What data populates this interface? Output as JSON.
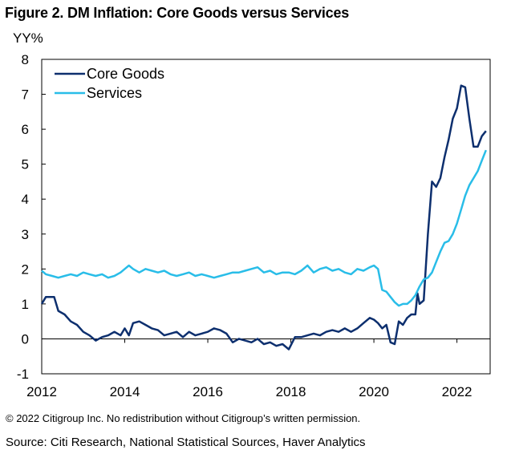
{
  "figure": {
    "title": "Figure 2. DM Inflation: Core Goods versus Services",
    "copyright": "© 2022 Citigroup Inc. No redistribution without Citigroup’s written permission.",
    "source": "Source: Citi Research, National Statistical Sources, Haver Analytics"
  },
  "chart_data": {
    "type": "line",
    "title": "Figure 2. DM Inflation: Core Goods versus Services",
    "xlabel": "",
    "ylabel": "YY%",
    "xlim": [
      2012,
      2022.8
    ],
    "ylim": [
      -1,
      8
    ],
    "xticks": [
      2012,
      2014,
      2016,
      2018,
      2020,
      2022
    ],
    "yticks": [
      -1,
      0,
      1,
      2,
      3,
      4,
      5,
      6,
      7,
      8
    ],
    "grid": false,
    "legend": "top-left",
    "series": [
      {
        "name": "Core Goods",
        "color": "#0d2f6e",
        "x": [
          2012.0,
          2012.1,
          2012.3,
          2012.4,
          2012.55,
          2012.7,
          2012.85,
          2013.0,
          2013.15,
          2013.3,
          2013.45,
          2013.6,
          2013.75,
          2013.9,
          2014.0,
          2014.1,
          2014.2,
          2014.35,
          2014.5,
          2014.65,
          2014.8,
          2014.95,
          2015.1,
          2015.25,
          2015.4,
          2015.55,
          2015.7,
          2015.85,
          2016.0,
          2016.15,
          2016.3,
          2016.45,
          2016.6,
          2016.75,
          2016.9,
          2017.05,
          2017.2,
          2017.35,
          2017.5,
          2017.65,
          2017.8,
          2017.95,
          2018.1,
          2018.25,
          2018.4,
          2018.55,
          2018.7,
          2018.85,
          2019.0,
          2019.15,
          2019.3,
          2019.45,
          2019.6,
          2019.75,
          2019.9,
          2020.0,
          2020.1,
          2020.2,
          2020.3,
          2020.4,
          2020.5,
          2020.6,
          2020.7,
          2020.8,
          2020.9,
          2021.0,
          2021.05,
          2021.1,
          2021.2,
          2021.3,
          2021.4,
          2021.5,
          2021.6,
          2021.7,
          2021.8,
          2021.9,
          2022.0,
          2022.1,
          2022.2,
          2022.3,
          2022.4,
          2022.5,
          2022.6,
          2022.7
        ],
        "values": [
          1.0,
          1.2,
          1.2,
          0.8,
          0.7,
          0.5,
          0.4,
          0.2,
          0.1,
          -0.05,
          0.05,
          0.1,
          0.2,
          0.1,
          0.3,
          0.1,
          0.45,
          0.5,
          0.4,
          0.3,
          0.25,
          0.1,
          0.15,
          0.2,
          0.05,
          0.2,
          0.1,
          0.15,
          0.2,
          0.3,
          0.25,
          0.15,
          -0.1,
          0.0,
          -0.05,
          -0.1,
          0.0,
          -0.15,
          -0.1,
          -0.2,
          -0.15,
          -0.3,
          0.05,
          0.05,
          0.1,
          0.15,
          0.1,
          0.2,
          0.25,
          0.2,
          0.3,
          0.2,
          0.3,
          0.45,
          0.6,
          0.55,
          0.45,
          0.3,
          0.4,
          -0.1,
          -0.15,
          0.5,
          0.4,
          0.6,
          0.7,
          0.7,
          1.3,
          1.0,
          1.1,
          3.0,
          4.5,
          4.35,
          4.6,
          5.2,
          5.7,
          6.3,
          6.6,
          7.25,
          7.2,
          6.3,
          5.5,
          5.5,
          5.8,
          5.95
        ]
      },
      {
        "name": "Services",
        "color": "#29bde8",
        "x": [
          2012.0,
          2012.1,
          2012.25,
          2012.4,
          2012.55,
          2012.7,
          2012.85,
          2013.0,
          2013.15,
          2013.3,
          2013.45,
          2013.6,
          2013.75,
          2013.9,
          2014.0,
          2014.1,
          2014.2,
          2014.35,
          2014.5,
          2014.65,
          2014.8,
          2014.95,
          2015.1,
          2015.25,
          2015.4,
          2015.55,
          2015.7,
          2015.85,
          2016.0,
          2016.15,
          2016.3,
          2016.45,
          2016.6,
          2016.75,
          2016.9,
          2017.05,
          2017.2,
          2017.35,
          2017.5,
          2017.65,
          2017.8,
          2017.95,
          2018.1,
          2018.25,
          2018.4,
          2018.55,
          2018.7,
          2018.85,
          2019.0,
          2019.15,
          2019.3,
          2019.45,
          2019.6,
          2019.75,
          2019.9,
          2020.0,
          2020.1,
          2020.2,
          2020.3,
          2020.4,
          2020.5,
          2020.6,
          2020.7,
          2020.8,
          2020.9,
          2021.0,
          2021.1,
          2021.2,
          2021.3,
          2021.4,
          2021.5,
          2021.6,
          2021.7,
          2021.8,
          2021.9,
          2022.0,
          2022.1,
          2022.2,
          2022.3,
          2022.4,
          2022.5,
          2022.6,
          2022.7
        ],
        "values": [
          1.95,
          1.85,
          1.8,
          1.75,
          1.8,
          1.85,
          1.8,
          1.9,
          1.85,
          1.8,
          1.85,
          1.75,
          1.8,
          1.9,
          2.0,
          2.1,
          2.0,
          1.9,
          2.0,
          1.95,
          1.9,
          1.95,
          1.85,
          1.8,
          1.85,
          1.9,
          1.8,
          1.85,
          1.8,
          1.75,
          1.8,
          1.85,
          1.9,
          1.9,
          1.95,
          2.0,
          2.05,
          1.9,
          1.95,
          1.85,
          1.9,
          1.9,
          1.85,
          1.95,
          2.1,
          1.9,
          2.0,
          2.05,
          1.95,
          2.0,
          1.9,
          1.85,
          2.0,
          1.95,
          2.05,
          2.1,
          2.0,
          1.4,
          1.35,
          1.2,
          1.05,
          0.95,
          1.0,
          1.0,
          1.1,
          1.25,
          1.5,
          1.7,
          1.75,
          1.9,
          2.2,
          2.5,
          2.75,
          2.8,
          3.0,
          3.3,
          3.7,
          4.1,
          4.4,
          4.6,
          4.8,
          5.1,
          5.4
        ]
      }
    ]
  }
}
